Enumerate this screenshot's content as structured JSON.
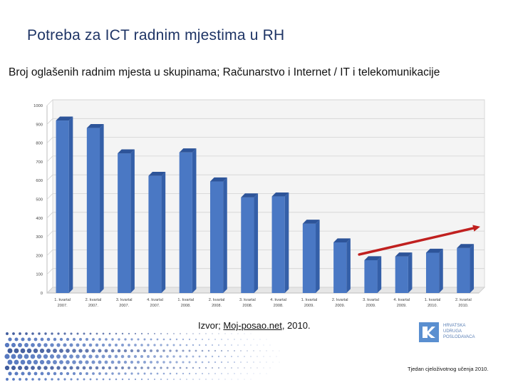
{
  "page": {
    "title": "Potreba za ICT radnim mjestima u RH",
    "subtitle": "Broj oglašenih radnim mjesta u skupinama; Računarstvo i Internet / IT i telekomunikacije",
    "source_prefix": "Izvor;",
    "source_name": "Moj-posao.net",
    "source_year": ", 2010.",
    "logo_lines": [
      "HRVATSKA",
      "UDRUGA",
      "POSLODAVACA"
    ],
    "footer": "Tjedan cjeloživotnog učenja 2010."
  },
  "colors": {
    "title": "#1f3566",
    "bar": "#4a78c4",
    "bar_top": "#2d5499",
    "bar_side": "#345fa8",
    "trend_arrow": "#c0201f",
    "wall": "#f4f4f4"
  },
  "chart_data": {
    "type": "bar",
    "title": "",
    "xlabel": "",
    "ylabel": "",
    "ylim": [
      0,
      1000
    ],
    "yticks": [
      0,
      100,
      200,
      300,
      400,
      500,
      600,
      700,
      800,
      900,
      1000
    ],
    "grid": true,
    "categories": [
      [
        "1. kvartal",
        "2007."
      ],
      [
        "2. kvartal",
        "2007."
      ],
      [
        "3. kvartal",
        "2007."
      ],
      [
        "4. kvartal",
        "2007."
      ],
      [
        "1. kvartal",
        "2008."
      ],
      [
        "2. kvartal",
        "2008."
      ],
      [
        "3. kvartal",
        "2008."
      ],
      [
        "4. kvartal",
        "2008."
      ],
      [
        "1. kvartal",
        "2009."
      ],
      [
        "2. kvartal",
        "2009."
      ],
      [
        "3. kvartal",
        "2009."
      ],
      [
        "4. kvartal",
        "2009."
      ],
      [
        "1. kvartal",
        "2010."
      ],
      [
        "2. kvartal",
        "2010."
      ]
    ],
    "values": [
      920,
      880,
      745,
      625,
      750,
      595,
      510,
      515,
      370,
      270,
      175,
      195,
      215,
      240
    ],
    "annotation": {
      "type": "trend-arrow",
      "from_category": 10,
      "to_category": 13
    }
  }
}
